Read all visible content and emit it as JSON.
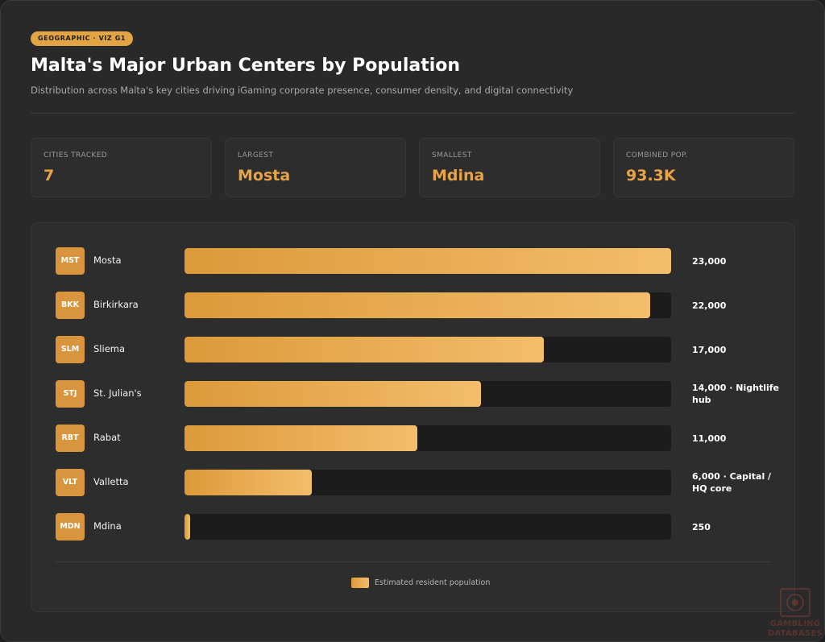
{
  "header": {
    "tag": "GEOGRAPHIC · VIZ G1",
    "title": "Malta's Major Urban Centers by Population",
    "subtitle": "Distribution across Malta's key cities driving iGaming corporate presence, consumer density, and digital connectivity"
  },
  "stats": [
    {
      "label": "CITIES TRACKED",
      "value": "7"
    },
    {
      "label": "LARGEST",
      "value": "Mosta"
    },
    {
      "label": "SMALLEST",
      "value": "Mdina"
    },
    {
      "label": "COMBINED POP.",
      "value": "93.3K"
    }
  ],
  "chart_data": {
    "type": "bar",
    "orientation": "horizontal",
    "series": [
      {
        "name": "Estimated resident population"
      }
    ],
    "xlim": [
      0,
      23000
    ],
    "legend_position": "bottom-center",
    "grid": false,
    "bars": [
      {
        "code": "MST",
        "city": "Mosta",
        "value": 23000,
        "label": "23,000"
      },
      {
        "code": "BKK",
        "city": "Birkirkara",
        "value": 22000,
        "label": "22,000"
      },
      {
        "code": "SLM",
        "city": "Sliema",
        "value": 17000,
        "label": "17,000"
      },
      {
        "code": "STJ",
        "city": "St. Julian's",
        "value": 14000,
        "label": "14,000 · Nightlife hub"
      },
      {
        "code": "RBT",
        "city": "Rabat",
        "value": 11000,
        "label": "11,000"
      },
      {
        "code": "VLT",
        "city": "Valletta",
        "value": 6000,
        "label": "6,000 · Capital / HQ core"
      },
      {
        "code": "MDN",
        "city": "Mdina",
        "value": 250,
        "label": "250"
      }
    ]
  },
  "legend": {
    "label": "Estimated resident population"
  },
  "colors": {
    "accent": "#e3a444",
    "bar_start": "#dc9a3a",
    "bar_end": "#f3bd6b",
    "track": "#1c1c1c"
  },
  "watermark": {
    "line1": "GAMBLING",
    "line2": "DATABASES"
  }
}
